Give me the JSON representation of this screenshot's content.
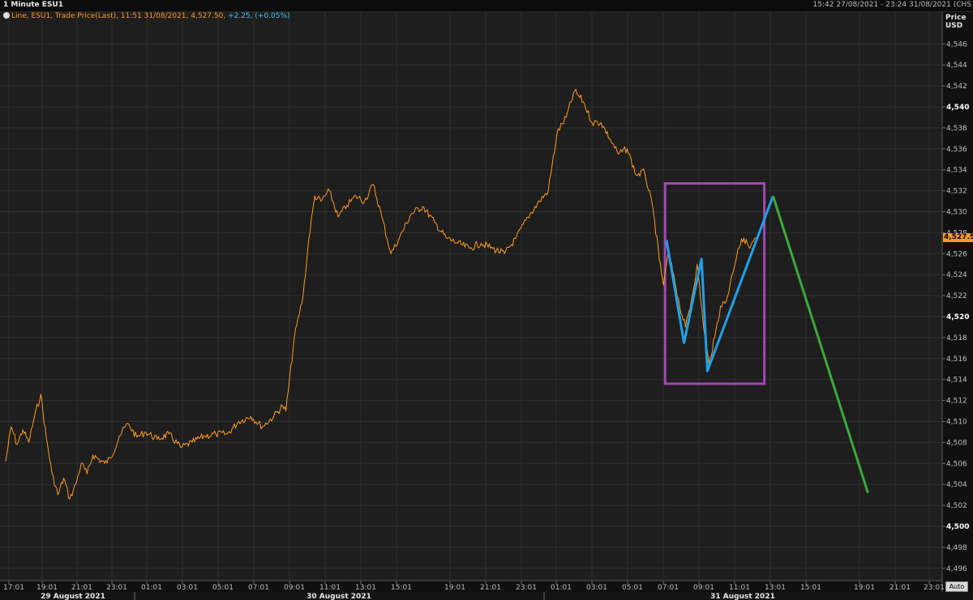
{
  "window": {
    "title": "1 Minute ESU1",
    "date_range": "15:42 27/08/2021 - 23:24 31/08/2021 (CHS"
  },
  "legend": {
    "text": "Line, ESU1, Trade Price(Last),  11:51 31/08/2021, 4,527.50,",
    "change": "+2.25, (+0.05%)"
  },
  "axis_header": {
    "line1": "Price",
    "line2": "USD"
  },
  "last_price_label": "4,527.50",
  "auto_button": "Auto",
  "colors": {
    "background": "#1e1e1e",
    "grid": "#2f2f2f",
    "price_line": "#ff9a1e",
    "pattern_line": "#1fa0e6",
    "projection_line": "#3aaa3c",
    "box": "#a048b0"
  },
  "chart_data": {
    "type": "line",
    "title": "1 Minute ESU1",
    "xlabel": "",
    "ylabel": "Price USD",
    "ylim": [
      4495,
      4547
    ],
    "grid": true,
    "y_ticks": [
      "4,496",
      "4,498",
      "4,500",
      "4,502",
      "4,504",
      "4,506",
      "4,508",
      "4,510",
      "4,512",
      "4,514",
      "4,516",
      "4,518",
      "4,520",
      "4,522",
      "4,524",
      "4,526",
      "4,528",
      "4,530",
      "4,532",
      "4,534",
      "4,536",
      "4,538",
      "4,540",
      "4,542",
      "4,544",
      "4,546"
    ],
    "y_tick_values": [
      4496,
      4498,
      4500,
      4502,
      4504,
      4506,
      4508,
      4510,
      4512,
      4514,
      4516,
      4518,
      4520,
      4522,
      4524,
      4526,
      4528,
      4530,
      4532,
      4534,
      4536,
      4538,
      4540,
      4542,
      4544,
      4546
    ],
    "y_bold_ticks": [
      4500,
      4520,
      4540
    ],
    "x_ticks": [
      "17:01",
      "19:01",
      "21:01",
      "23:01",
      "01:01",
      "03:01",
      "05:01",
      "07:01",
      "09:01",
      "11:01",
      "13:01",
      "15:01",
      "19:01",
      "21:01",
      "23:01",
      "01:01",
      "03:01",
      "05:01",
      "07:01",
      "09:01",
      "11:01",
      "13:01",
      "15:01",
      "19:01",
      "21:01",
      "23:01"
    ],
    "date_labels": [
      "29 August 2021",
      "30 August 2021",
      "31 August 2021"
    ],
    "series": [
      {
        "points": [
          [
            "27/08 17:01",
            4506.2
          ],
          [
            "27/08 17:20",
            4509.5
          ],
          [
            "27/08 17:40",
            4507.8
          ],
          [
            "27/08 18:00",
            4509.2
          ],
          [
            "27/08 18:20",
            4508.0
          ],
          [
            "27/08 18:40",
            4510.5
          ],
          [
            "27/08 19:01",
            4512.6
          ],
          [
            "27/08 19:20",
            4508.5
          ],
          [
            "27/08 19:40",
            4505.0
          ],
          [
            "27/08 20:00",
            4503.0
          ],
          [
            "27/08 20:20",
            4504.6
          ],
          [
            "27/08 20:40",
            4502.6
          ],
          [
            "27/08 21:01",
            4504.0
          ],
          [
            "27/08 21:20",
            4506.0
          ],
          [
            "27/08 21:40",
            4505.0
          ],
          [
            "27/08 22:00",
            4506.8
          ],
          [
            "27/08 22:40",
            4506.0
          ],
          [
            "27/08 23:01",
            4506.5
          ],
          [
            "27/08 23:30",
            4508.6
          ],
          [
            "28/08 00:00",
            4509.8
          ],
          [
            "28/08 00:30",
            4508.5
          ],
          [
            "28/08 01:01",
            4509.0
          ],
          [
            "28/08 01:40",
            4508.3
          ],
          [
            "28/08 02:20",
            4508.8
          ],
          [
            "28/08 03:01",
            4507.5
          ],
          [
            "28/08 03:40",
            4508.0
          ],
          [
            "28/08 04:20",
            4508.6
          ],
          [
            "28/08 05:01",
            4508.8
          ],
          [
            "28/08 05:40",
            4508.8
          ],
          [
            "28/08 06:20",
            4510.0
          ],
          [
            "28/08 07:01",
            4510.5
          ],
          [
            "28/08 07:40",
            4509.5
          ],
          [
            "28/08 08:20",
            4510.5
          ],
          [
            "28/08 08:50",
            4511.5
          ],
          [
            "28/08 09:01",
            4511.0
          ],
          [
            "28/08 09:30",
            4518.0
          ],
          [
            "28/08 10:00",
            4522.0
          ],
          [
            "28/08 10:20",
            4527.5
          ],
          [
            "28/08 10:40",
            4531.5
          ],
          [
            "28/08 11:01",
            4531.0
          ],
          [
            "28/08 11:30",
            4532.0
          ],
          [
            "28/08 12:00",
            4529.5
          ],
          [
            "28/08 12:30",
            4530.6
          ],
          [
            "28/08 13:01",
            4531.5
          ],
          [
            "28/08 13:30",
            4531.0
          ],
          [
            "28/08 14:00",
            4532.6
          ],
          [
            "28/08 14:30",
            4529.5
          ],
          [
            "28/08 15:01",
            4526.0
          ],
          [
            "28/08 15:30",
            4527.5
          ],
          [
            "28/08 16:10",
            4529.8
          ],
          [
            "28/08 16:50",
            4530.5
          ],
          [
            "28/08 17:30",
            4529.0
          ],
          [
            "28/08 18:10",
            4527.5
          ],
          [
            "28/08 18:50",
            4527.0
          ],
          [
            "28/08 19:30",
            4526.5
          ],
          [
            "28/08 20:10",
            4527.0
          ],
          [
            "28/08 20:50",
            4526.5
          ],
          [
            "28/08 21:30",
            4526.0
          ],
          [
            "28/08 22:10",
            4527.5
          ],
          [
            "28/08 22:50",
            4529.5
          ],
          [
            "28/08 23:30",
            4531.0
          ],
          [
            "29/08 00:00",
            4532.0
          ],
          [
            "29/08 00:30",
            4537.5
          ],
          [
            "29/08 01:01",
            4539.0
          ],
          [
            "29/08 01:30",
            4541.5
          ],
          [
            "29/08 02:00",
            4540.5
          ],
          [
            "29/08 02:30",
            4538.5
          ],
          [
            "29/08 03:01",
            4538.5
          ],
          [
            "29/08 03:30",
            4537.0
          ],
          [
            "29/08 04:00",
            4535.5
          ],
          [
            "29/08 04:30",
            4536.0
          ],
          [
            "29/08 05:01",
            4533.5
          ],
          [
            "29/08 05:30",
            4533.8
          ],
          [
            "29/08 06:00",
            4530.0
          ],
          [
            "29/08 06:20",
            4525.5
          ],
          [
            "29/08 06:35",
            4523.0
          ],
          [
            "29/08 06:50",
            4526.0
          ],
          [
            "29/08 07:10",
            4524.0
          ],
          [
            "29/08 07:30",
            4521.0
          ],
          [
            "29/08 07:50",
            4519.0
          ],
          [
            "29/08 08:10",
            4521.5
          ],
          [
            "29/08 08:30",
            4525.0
          ],
          [
            "29/08 08:50",
            4519.5
          ],
          [
            "29/08 09:10",
            4515.5
          ],
          [
            "29/08 09:30",
            4518.0
          ],
          [
            "29/08 09:50",
            4521.0
          ],
          [
            "29/08 10:10",
            4521.5
          ],
          [
            "29/08 10:30",
            4524.0
          ],
          [
            "29/08 10:50",
            4526.5
          ],
          [
            "29/08 11:10",
            4527.5
          ],
          [
            "29/08 11:30",
            4526.5
          ],
          [
            "29/08 11:51",
            4527.5
          ]
        ]
      },
      {
        "points": [
          [
            "29/08 06:45",
            4527.3
          ],
          [
            "29/08 07:45",
            4517.5
          ],
          [
            "29/08 08:45",
            4525.5
          ],
          [
            "29/08 09:05",
            4514.8
          ],
          [
            "29/08 12:50",
            4531.5
          ]
        ]
      },
      {
        "points": [
          [
            "29/08 12:50",
            4531.5
          ],
          [
            "29/08 18:15",
            4503.2
          ]
        ]
      }
    ],
    "annotation_box": {
      "x_from": "29/08 06:40",
      "x_to": "29/08 12:20",
      "y_from": 4513.6,
      "y_to": 4532.7
    }
  }
}
